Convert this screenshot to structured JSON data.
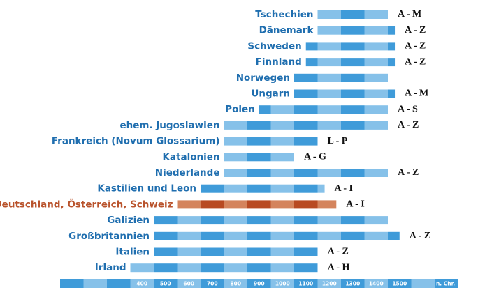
{
  "chart_data": {
    "type": "timeline",
    "color": "#86c1e9",
    "color_alt": "#3f9bd9",
    "highlight_color": "#d4845d",
    "highlight_color_alt": "#b84a22",
    "label_color": "#1f6eaf",
    "highlight_label_color": "#b9532c",
    "xlim": [
      100,
      1800
    ],
    "xticks": [
      400,
      500,
      600,
      700,
      800,
      900,
      1000,
      1100,
      1200,
      1300,
      1400,
      1500
    ],
    "x_axis_label": "n. Chr.",
    "rows": [
      {
        "name": "Tschechien",
        "start": 1200,
        "end": 1500,
        "letters": "A - M"
      },
      {
        "name": "Dänemark",
        "start": 1200,
        "end": 1530,
        "letters": "A - Z"
      },
      {
        "name": "Schweden",
        "start": 1150,
        "end": 1530,
        "letters": "A - Z"
      },
      {
        "name": "Finnland",
        "start": 1150,
        "end": 1530,
        "letters": "A - Z"
      },
      {
        "name": "Norwegen",
        "start": 1100,
        "end": 1500
      },
      {
        "name": "Ungarn",
        "start": 1100,
        "end": 1530,
        "letters": "A - M"
      },
      {
        "name": "Polen",
        "start": 950,
        "end": 1500,
        "letters": "A - S"
      },
      {
        "name": "ehem. Jugoslawien",
        "start": 800,
        "end": 1500,
        "letters": "A - Z"
      },
      {
        "name": "Frankreich (Novum Glossarium)",
        "start": 800,
        "end": 1200,
        "letters": "L - P"
      },
      {
        "name": "Katalonien",
        "start": 800,
        "end": 1100,
        "letters": "A - G"
      },
      {
        "name": "Niederlande",
        "start": 800,
        "end": 1500,
        "letters": "A - Z"
      },
      {
        "name": "Kastilien und Leon",
        "start": 700,
        "end": 1230,
        "letters": "A - I"
      },
      {
        "name": "Deutschland, Österreich, Schweiz",
        "start": 600,
        "end": 1280,
        "letters": "A - I",
        "highlight": true
      },
      {
        "name": "Galizien",
        "start": 500,
        "end": 1500
      },
      {
        "name": "Großbritannien",
        "start": 500,
        "end": 1550,
        "letters": "A - Z"
      },
      {
        "name": "Italien",
        "start": 500,
        "end": 1200,
        "letters": "A - Z"
      },
      {
        "name": "Irland",
        "start": 400,
        "end": 1200,
        "letters": "A - H"
      }
    ]
  }
}
